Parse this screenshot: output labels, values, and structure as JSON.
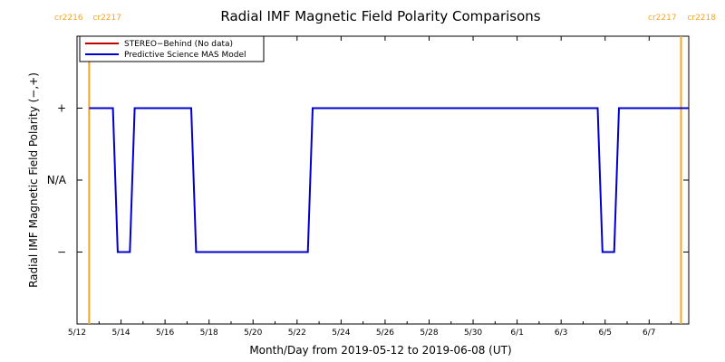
{
  "chart_data": {
    "type": "line",
    "title": "Radial IMF Magnetic Field Polarity Comparisons",
    "xlabel": "Month/Day from 2019-05-12 to 2019-06-08 (UT)",
    "ylabel": "Radial IMF Magnetic Field Polarity (−,+)",
    "x_unit": "days since 2019-05-12 00:00 UT",
    "xlim": [
      0,
      27.8
    ],
    "ylim": [
      -2,
      2
    ],
    "x_ticks": [
      {
        "x": 0,
        "label": "5/12"
      },
      {
        "x": 2,
        "label": "5/14"
      },
      {
        "x": 4,
        "label": "5/16"
      },
      {
        "x": 6,
        "label": "5/18"
      },
      {
        "x": 8,
        "label": "5/20"
      },
      {
        "x": 10,
        "label": "5/22"
      },
      {
        "x": 12,
        "label": "5/24"
      },
      {
        "x": 14,
        "label": "5/26"
      },
      {
        "x": 16,
        "label": "5/28"
      },
      {
        "x": 18,
        "label": "5/30"
      },
      {
        "x": 20,
        "label": "6/1"
      },
      {
        "x": 22,
        "label": "6/3"
      },
      {
        "x": 24,
        "label": "6/5"
      },
      {
        "x": 26,
        "label": "6/7"
      }
    ],
    "y_ticks": [
      {
        "y": 1,
        "label": "+"
      },
      {
        "y": 0,
        "label": "N/A"
      },
      {
        "y": -1,
        "label": "−"
      }
    ],
    "carrington_markers": [
      {
        "x": 0.55,
        "left_label": "cr2216",
        "right_label": "cr2217",
        "color": "#f5a623"
      },
      {
        "x": 27.45,
        "left_label": "cr2217",
        "right_label": "cr2218",
        "color": "#f5a623"
      }
    ],
    "legend": {
      "placement": "top-left",
      "entries": [
        {
          "label": "STEREO−Behind (No data)",
          "color": "#c00000"
        },
        {
          "label": "Predictive Science MAS Model",
          "color": "#0000cc"
        }
      ]
    },
    "series": [
      {
        "name": "Predictive Science MAS Model",
        "color": "#0000cc",
        "x": [
          0.55,
          1.63,
          1.85,
          2.4,
          2.62,
          5.19,
          5.41,
          10.49,
          10.71,
          23.66,
          23.88,
          24.41,
          24.63,
          27.8
        ],
        "y": [
          1,
          1,
          -1,
          -1,
          1,
          1,
          -1,
          -1,
          1,
          1,
          -1,
          -1,
          1,
          1
        ]
      },
      {
        "name": "STEREO−Behind (No data)",
        "color": "#c00000",
        "x": [],
        "y": []
      }
    ]
  }
}
